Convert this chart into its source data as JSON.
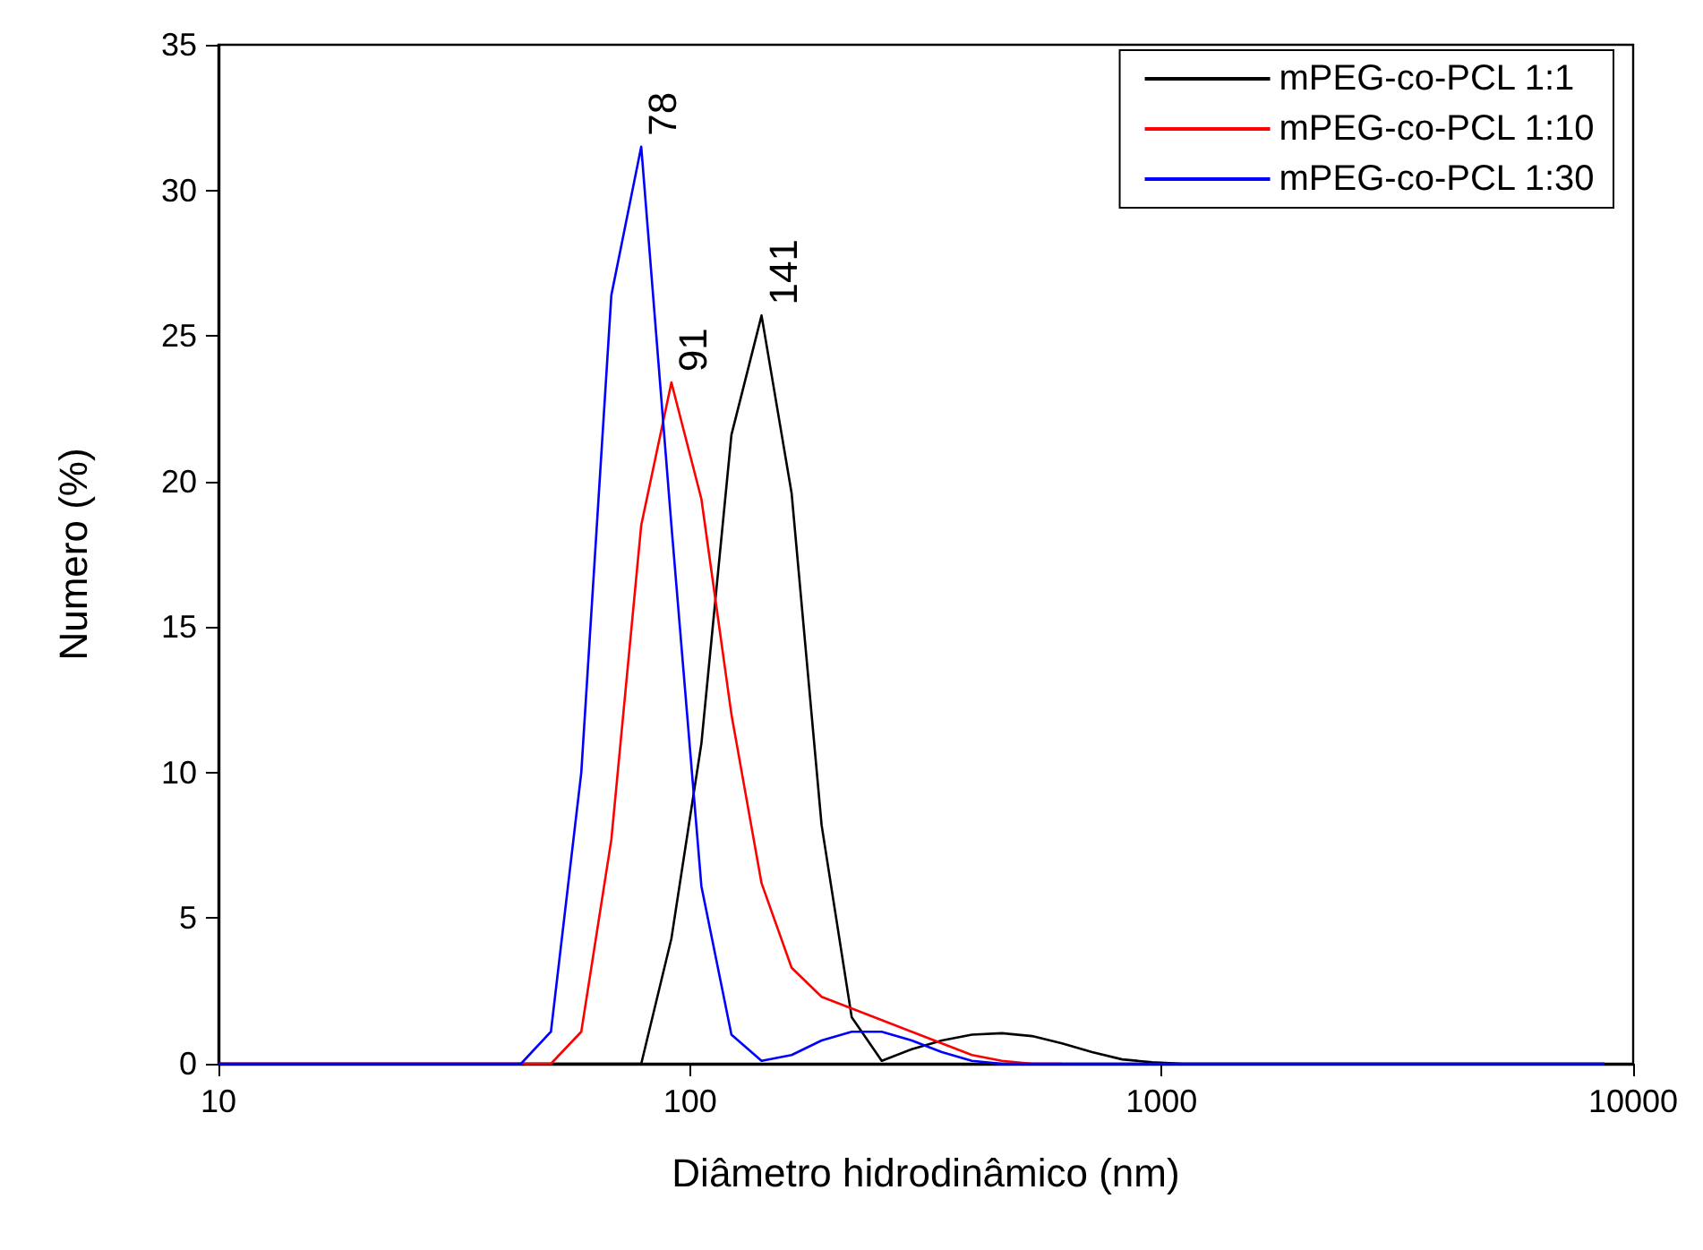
{
  "chart_data": {
    "type": "line",
    "xlabel": "Diâmetro hidrodinâmico (nm)",
    "ylabel": "Numero (%)",
    "x": [
      10,
      37.8,
      43.8,
      50.7,
      58.8,
      68.1,
      78.8,
      91.3,
      105.7,
      122.4,
      141.8,
      164.2,
      190.1,
      220.2,
      255,
      295.3,
      342,
      396.1,
      458.7,
      531.2,
      615.1,
      712.4,
      825,
      955.4,
      1106,
      8700
    ],
    "series": [
      {
        "name": "mPEG-co-PCL 1:1",
        "color": "#000000",
        "values": [
          0,
          0,
          0,
          0,
          0,
          0,
          0,
          4.3,
          11,
          21.6,
          25.7,
          19.6,
          8.2,
          1.6,
          0.1,
          0.5,
          0.8,
          1.0,
          1.05,
          0.95,
          0.7,
          0.4,
          0.15,
          0.05,
          0,
          0
        ]
      },
      {
        "name": "mPEG-co-PCL 1:10",
        "color": "#ff0000",
        "values": [
          0,
          0,
          0,
          0,
          1.1,
          7.7,
          18.5,
          23.4,
          19.4,
          12,
          6.2,
          3.3,
          2.3,
          1.9,
          1.5,
          1.1,
          0.7,
          0.3,
          0.1,
          0,
          0,
          null,
          null,
          null,
          null,
          null
        ]
      },
      {
        "name": "mPEG-co-PCL 1:30",
        "color": "#0000ff",
        "values": [
          0,
          0,
          0,
          1.1,
          10,
          26.4,
          31.5,
          18.5,
          6.1,
          1.0,
          0.1,
          0.3,
          0.8,
          1.1,
          1.1,
          0.8,
          0.4,
          0.1,
          0,
          0,
          0,
          0,
          0,
          0,
          0,
          0
        ]
      }
    ],
    "annotations": [
      {
        "text": "78",
        "x": 78.8,
        "y": 31.5
      },
      {
        "text": "91",
        "x": 91.3,
        "y": 23.4
      },
      {
        "text": "141",
        "x": 141.8,
        "y": 25.7
      }
    ],
    "log": "x",
    "xlim": [
      10,
      10000
    ],
    "xticks": [
      10,
      100,
      1000,
      10000
    ],
    "ylim": [
      0,
      35
    ],
    "yticks": [
      0,
      5,
      10,
      15,
      20,
      25,
      30,
      35
    ],
    "grid": false,
    "legend": "top right",
    "marker": "none",
    "line_style": "solid"
  }
}
